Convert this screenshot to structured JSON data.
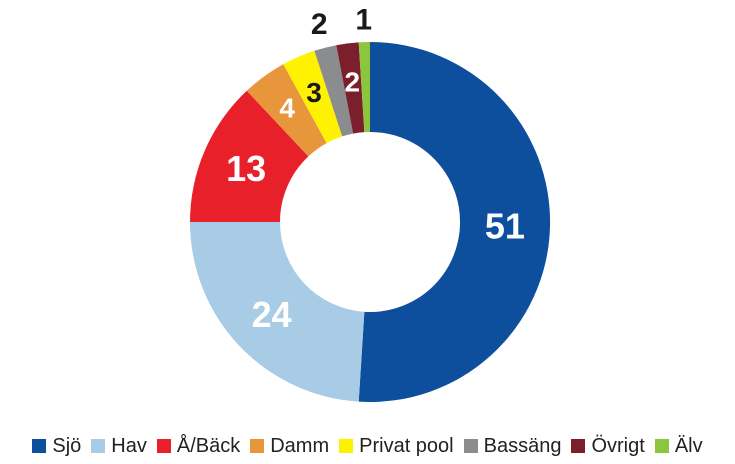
{
  "chart_data": {
    "type": "pie",
    "donut": true,
    "categories": [
      "Sjö",
      "Hav",
      "Å/Bäck",
      "Damm",
      "Privat pool",
      "Bassäng",
      "Övrigt",
      "Älv"
    ],
    "values": [
      51,
      24,
      13,
      4,
      3,
      2,
      2,
      1
    ],
    "colors": [
      "#0d4f9c",
      "#a8cbe6",
      "#e8202a",
      "#e8963b",
      "#fff200",
      "#8a8c8e",
      "#7a1f2b",
      "#8cc63f"
    ],
    "label_colors": [
      "#ffffff",
      "#ffffff",
      "#ffffff",
      "#ffffff",
      "#1a1a1a",
      "#1a1a1a",
      "#ffffff",
      "#1a1a1a"
    ],
    "legend_position": "bottom"
  }
}
